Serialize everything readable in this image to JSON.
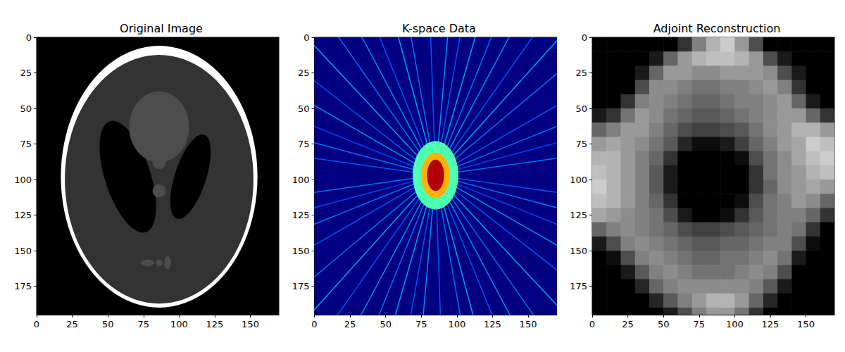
{
  "chart_data": [
    {
      "type": "image",
      "title": "Original Image",
      "color": "gray",
      "clim": [
        0,
        1
      ],
      "xlim": [
        0,
        170
      ],
      "ylim": [
        195,
        0
      ],
      "xticks": [
        0,
        25,
        50,
        75,
        100,
        125,
        150
      ],
      "yticks": [
        0,
        25,
        50,
        75,
        100,
        125,
        150,
        175
      ],
      "background": 0,
      "ellipses": [
        {
          "cx": 86,
          "cy": 98,
          "rx": 69,
          "ry": 92,
          "angle": 0,
          "value": 1
        },
        {
          "cx": 86,
          "cy": 99.8,
          "rx": 66.2,
          "ry": 87.4,
          "angle": 0,
          "value": 0.2
        },
        {
          "cx": 108,
          "cy": 98,
          "rx": 11,
          "ry": 31,
          "angle": 18,
          "value": 0
        },
        {
          "cx": 64,
          "cy": 98,
          "rx": 16,
          "ry": 41,
          "angle": -18,
          "value": 0
        },
        {
          "cx": 86,
          "cy": 63,
          "rx": 21,
          "ry": 25,
          "angle": 0,
          "value": 0.3
        },
        {
          "cx": 86,
          "cy": 88,
          "rx": 4.6,
          "ry": 4.6,
          "angle": 0,
          "value": 0.3
        },
        {
          "cx": 86,
          "cy": 108,
          "rx": 4.6,
          "ry": 4.6,
          "angle": 0,
          "value": 0.3
        },
        {
          "cx": 78,
          "cy": 158.5,
          "rx": 4.6,
          "ry": 2.3,
          "angle": 0,
          "value": 0.3
        },
        {
          "cx": 86,
          "cy": 158.6,
          "rx": 2.3,
          "ry": 2.3,
          "angle": 0,
          "value": 0.3
        },
        {
          "cx": 92,
          "cy": 158.5,
          "rx": 2.3,
          "ry": 4.6,
          "angle": 0,
          "value": 0.3
        }
      ]
    },
    {
      "type": "image",
      "title": "K-space Data",
      "color": "jet",
      "clim": [
        0,
        1
      ],
      "xlim": [
        0,
        170
      ],
      "ylim": [
        195,
        0
      ],
      "xticks": [
        0,
        25,
        50,
        75,
        100,
        125,
        150
      ],
      "yticks": [
        0,
        25,
        50,
        75,
        100,
        125,
        150,
        175
      ],
      "background": 0,
      "center": [
        85,
        97
      ],
      "spokes": [
        {
          "angle": 8,
          "value": 0.22
        },
        {
          "angle": 15,
          "value": 0.25
        },
        {
          "angle": 22,
          "value": 0.2
        },
        {
          "angle": 30,
          "value": 0.28
        },
        {
          "angle": 38,
          "value": 0.22
        },
        {
          "angle": 47,
          "value": 0.3
        },
        {
          "angle": 55,
          "value": 0.25
        },
        {
          "angle": 62,
          "value": 0.28
        },
        {
          "angle": 68,
          "value": 0.22
        },
        {
          "angle": 75,
          "value": 0.3
        },
        {
          "angle": 80,
          "value": 0.25
        },
        {
          "angle": 88,
          "value": 0.22
        },
        {
          "angle": 95,
          "value": 0.28
        },
        {
          "angle": 100,
          "value": 0.22
        },
        {
          "angle": 106,
          "value": 0.3
        },
        {
          "angle": 112,
          "value": 0.25
        },
        {
          "angle": 118,
          "value": 0.28
        },
        {
          "angle": 125,
          "value": 0.22
        },
        {
          "angle": 132,
          "value": 0.3
        },
        {
          "angle": 140,
          "value": 0.25
        },
        {
          "angle": 150,
          "value": 0.22
        },
        {
          "angle": 158,
          "value": 0.25
        },
        {
          "angle": 165,
          "value": 0.2
        },
        {
          "angle": 172,
          "value": 0.25
        }
      ],
      "ellipses": [
        {
          "cx": 85,
          "cy": 97,
          "rx": 16,
          "ry": 24,
          "angle": 0,
          "value": 0.45
        },
        {
          "cx": 85,
          "cy": 97,
          "rx": 10,
          "ry": 16,
          "angle": 0,
          "value": 0.7
        },
        {
          "cx": 85,
          "cy": 97,
          "rx": 6,
          "ry": 11,
          "angle": 0,
          "value": 0.95
        }
      ]
    },
    {
      "type": "image",
      "title": "Adjoint Reconstruction",
      "color": "gray",
      "clim": [
        0,
        1
      ],
      "xlim": [
        0,
        170
      ],
      "ylim": [
        195,
        0
      ],
      "xticks": [
        0,
        25,
        50,
        75,
        100,
        125,
        150
      ],
      "yticks": [
        0,
        25,
        50,
        75,
        100,
        125,
        150,
        175
      ],
      "cell_size": 10,
      "cells": [
        [
          0,
          0,
          0,
          0,
          0,
          0,
          0.2,
          0.5,
          0.7,
          0.8,
          0.6,
          0.3,
          0,
          0,
          0,
          0,
          0
        ],
        [
          0,
          0,
          0,
          0,
          0.1,
          0.4,
          0.6,
          0.7,
          0.75,
          0.75,
          0.7,
          0.6,
          0.3,
          0.1,
          0,
          0,
          0
        ],
        [
          0,
          0,
          0,
          0.1,
          0.4,
          0.6,
          0.6,
          0.55,
          0.55,
          0.6,
          0.6,
          0.6,
          0.55,
          0.3,
          0.1,
          0,
          0
        ],
        [
          0,
          0,
          0,
          0.3,
          0.55,
          0.55,
          0.5,
          0.45,
          0.45,
          0.5,
          0.5,
          0.55,
          0.6,
          0.5,
          0.2,
          0,
          0
        ],
        [
          0,
          0,
          0.2,
          0.5,
          0.55,
          0.5,
          0.45,
          0.4,
          0.4,
          0.45,
          0.5,
          0.5,
          0.55,
          0.6,
          0.4,
          0.1,
          0
        ],
        [
          0.1,
          0.2,
          0.45,
          0.6,
          0.55,
          0.45,
          0.4,
          0.35,
          0.35,
          0.4,
          0.45,
          0.5,
          0.55,
          0.6,
          0.6,
          0.4,
          0.2
        ],
        [
          0.4,
          0.5,
          0.6,
          0.6,
          0.5,
          0.4,
          0.3,
          0.25,
          0.25,
          0.3,
          0.35,
          0.45,
          0.55,
          0.6,
          0.7,
          0.7,
          0.6
        ],
        [
          0.6,
          0.65,
          0.6,
          0.55,
          0.45,
          0.35,
          0.15,
          0.05,
          0.05,
          0.1,
          0.25,
          0.4,
          0.5,
          0.6,
          0.65,
          0.8,
          0.75
        ],
        [
          0.7,
          0.7,
          0.6,
          0.5,
          0.4,
          0.2,
          0,
          0,
          0,
          0,
          0.05,
          0.3,
          0.45,
          0.55,
          0.65,
          0.75,
          0.8
        ],
        [
          0.75,
          0.7,
          0.6,
          0.5,
          0.35,
          0.1,
          0,
          0,
          0,
          0,
          0,
          0.2,
          0.45,
          0.55,
          0.6,
          0.7,
          0.75
        ],
        [
          0.8,
          0.7,
          0.6,
          0.5,
          0.35,
          0.1,
          0,
          0,
          0,
          0,
          0,
          0.2,
          0.4,
          0.55,
          0.6,
          0.65,
          0.6
        ],
        [
          0.75,
          0.7,
          0.6,
          0.5,
          0.4,
          0.2,
          0,
          0,
          0,
          0,
          0.05,
          0.3,
          0.45,
          0.5,
          0.6,
          0.55,
          0.4
        ],
        [
          0.65,
          0.6,
          0.55,
          0.5,
          0.45,
          0.3,
          0.1,
          0,
          0,
          0.05,
          0.2,
          0.35,
          0.45,
          0.5,
          0.5,
          0.4,
          0.2
        ],
        [
          0.4,
          0.5,
          0.55,
          0.5,
          0.45,
          0.4,
          0.3,
          0.25,
          0.25,
          0.3,
          0.35,
          0.4,
          0.45,
          0.5,
          0.45,
          0.2,
          0
        ],
        [
          0.1,
          0.3,
          0.5,
          0.55,
          0.5,
          0.45,
          0.4,
          0.35,
          0.35,
          0.4,
          0.4,
          0.45,
          0.5,
          0.5,
          0.3,
          0.05,
          0
        ],
        [
          0,
          0.05,
          0.3,
          0.5,
          0.55,
          0.5,
          0.45,
          0.4,
          0.4,
          0.45,
          0.45,
          0.5,
          0.55,
          0.45,
          0.1,
          0,
          0
        ],
        [
          0,
          0,
          0.1,
          0.35,
          0.5,
          0.55,
          0.5,
          0.45,
          0.45,
          0.45,
          0.5,
          0.55,
          0.5,
          0.3,
          0,
          0,
          0
        ],
        [
          0,
          0,
          0,
          0.15,
          0.4,
          0.5,
          0.55,
          0.55,
          0.55,
          0.55,
          0.55,
          0.5,
          0.35,
          0.1,
          0,
          0,
          0
        ],
        [
          0,
          0,
          0,
          0,
          0.15,
          0.35,
          0.5,
          0.6,
          0.7,
          0.7,
          0.6,
          0.4,
          0.15,
          0,
          0,
          0,
          0
        ],
        [
          0,
          0,
          0,
          0,
          0,
          0.1,
          0.3,
          0.5,
          0.6,
          0.6,
          0.45,
          0.2,
          0,
          0,
          0,
          0,
          0
        ]
      ]
    }
  ]
}
